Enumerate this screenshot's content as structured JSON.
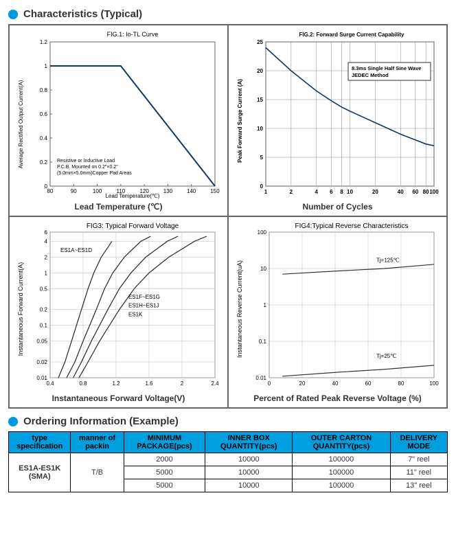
{
  "section1": {
    "title": "Characteristics (Typical)"
  },
  "section2": {
    "title": "Ordering Information (Example)"
  },
  "chart1": {
    "title": "FIG.1: Io-TL Curve",
    "xlabel": "Lead Temperature(℃)",
    "ylabel": "Average Rectified Output Current(A)",
    "caption": "Lead Temperature (℃)",
    "note1": "Resistive or Inductive Load",
    "note2": "P.C.B. Mounted on 0.2\"×0.2\"",
    "note3": "(5.0mm×5.0mm)Copper Pad Areas",
    "xlim": [
      80,
      150
    ],
    "xticks": [
      80,
      90,
      100,
      110,
      120,
      130,
      140,
      150
    ],
    "ylim": [
      0,
      1.2
    ],
    "yticks": [
      0,
      0.2,
      0.4,
      0.6,
      0.8,
      1.0,
      1.2
    ],
    "line_color": "#14375a",
    "line_width": 2,
    "grid_color": "none",
    "bg": "#ffffff",
    "points": [
      [
        80,
        1.0
      ],
      [
        110,
        1.0
      ],
      [
        150,
        0.0
      ]
    ],
    "fontsize_title": 9,
    "fontsize_axis": 8,
    "fontsize_tick": 8
  },
  "chart2": {
    "title": "FIG.2: Forward Surge Current Capability",
    "ylabel": "Peak Forward Surge Current (A)",
    "caption": "Number of Cycles",
    "legend1": "8.3ms Single Half Sine Wave",
    "legend2": "JEDEC Method",
    "xticks": [
      1,
      2,
      4,
      6,
      8,
      10,
      20,
      40,
      60,
      80,
      100
    ],
    "ylim": [
      0,
      25
    ],
    "yticks": [
      0,
      5,
      10,
      15,
      20,
      25
    ],
    "line_color": "#14375a",
    "line_width": 1.6,
    "grid_color": "#888",
    "bg": "#ffffff",
    "points": [
      [
        1,
        24
      ],
      [
        2,
        20
      ],
      [
        4,
        16.5
      ],
      [
        6,
        14.8
      ],
      [
        8,
        13.7
      ],
      [
        10,
        13
      ],
      [
        20,
        11
      ],
      [
        40,
        9
      ],
      [
        60,
        8
      ],
      [
        80,
        7.3
      ],
      [
        100,
        7
      ]
    ],
    "fontsize_title": 8
  },
  "chart3": {
    "title": "FIG3: Typical Forward Voltage",
    "xlabel_caption": "Instantaneous Forward Voltage(V)",
    "ylabel": "Instantaneous Forward Current(A)",
    "xlim": [
      0.4,
      2.4
    ],
    "xticks": [
      0.4,
      0.8,
      1.2,
      1.6,
      2.0,
      2.4
    ],
    "yticks": [
      0.01,
      0.02,
      0.05,
      0.1,
      0.2,
      0.5,
      1,
      2,
      4,
      6
    ],
    "line_color": "#333",
    "line_width": 1.3,
    "grid_color": "#aaa",
    "curves": [
      {
        "label": "ES1A~ES1D",
        "pts": [
          [
            0.5,
            0.01
          ],
          [
            0.58,
            0.02
          ],
          [
            0.66,
            0.05
          ],
          [
            0.72,
            0.1
          ],
          [
            0.78,
            0.2
          ],
          [
            0.86,
            0.5
          ],
          [
            0.93,
            1
          ],
          [
            1.02,
            2
          ],
          [
            1.15,
            4
          ]
        ]
      },
      {
        "label": "ES1F~ES1G",
        "pts": [
          [
            0.6,
            0.01
          ],
          [
            0.7,
            0.02
          ],
          [
            0.8,
            0.05
          ],
          [
            0.88,
            0.1
          ],
          [
            0.96,
            0.2
          ],
          [
            1.06,
            0.5
          ],
          [
            1.16,
            1
          ],
          [
            1.3,
            2
          ],
          [
            1.5,
            4
          ],
          [
            1.62,
            5
          ]
        ]
      },
      {
        "label": "ES1H~ES1J",
        "pts": [
          [
            0.68,
            0.01
          ],
          [
            0.78,
            0.02
          ],
          [
            0.9,
            0.05
          ],
          [
            1.0,
            0.1
          ],
          [
            1.1,
            0.2
          ],
          [
            1.24,
            0.5
          ],
          [
            1.38,
            1
          ],
          [
            1.56,
            2
          ],
          [
            1.82,
            4
          ],
          [
            1.95,
            5
          ]
        ]
      },
      {
        "label": "ES1K",
        "pts": [
          [
            0.75,
            0.01
          ],
          [
            0.86,
            0.02
          ],
          [
            1.0,
            0.05
          ],
          [
            1.12,
            0.1
          ],
          [
            1.24,
            0.2
          ],
          [
            1.42,
            0.5
          ],
          [
            1.6,
            1
          ],
          [
            1.84,
            2
          ],
          [
            2.15,
            4
          ],
          [
            2.3,
            5
          ]
        ]
      }
    ]
  },
  "chart4": {
    "title": "FIG4:Typical Reverse Characteristics",
    "xlabel_caption": "Percent of Rated Peak Reverse Voltage (%)",
    "ylabel": "Instantaneous Reverse Current(uA)",
    "xlim": [
      0,
      100
    ],
    "xticks": [
      0,
      20,
      40,
      60,
      80,
      100
    ],
    "yticks": [
      0.01,
      0.1,
      1.0,
      10,
      100
    ],
    "line_color": "#333",
    "line_width": 1.2,
    "grid_color": "#aaa",
    "curves": [
      {
        "label": "Tj=125℃",
        "pts": [
          [
            8,
            7
          ],
          [
            40,
            8.5
          ],
          [
            70,
            10
          ],
          [
            100,
            13
          ]
        ]
      },
      {
        "label": "Tj=25℃",
        "pts": [
          [
            8,
            0.011
          ],
          [
            40,
            0.014
          ],
          [
            70,
            0.017
          ],
          [
            100,
            0.022
          ]
        ]
      }
    ]
  },
  "table": {
    "headers": [
      "type specification",
      "manner of packin",
      "MINIMUM PACKAGE(pcs)",
      "INNER BOX QUANTITY(pcs)",
      "OUTER CARTON QUANTITY(pcs)",
      "DELIVERY MODE"
    ],
    "spec": "ES1A-ES1K\n(SMA)",
    "pack": "T/B",
    "rows": [
      [
        "2000",
        "10000",
        "100000",
        "7\" reel"
      ],
      [
        "5000",
        "10000",
        "100000",
        "11\" reel"
      ],
      [
        "5000",
        "10000",
        "100000",
        "13\" reel"
      ]
    ]
  }
}
